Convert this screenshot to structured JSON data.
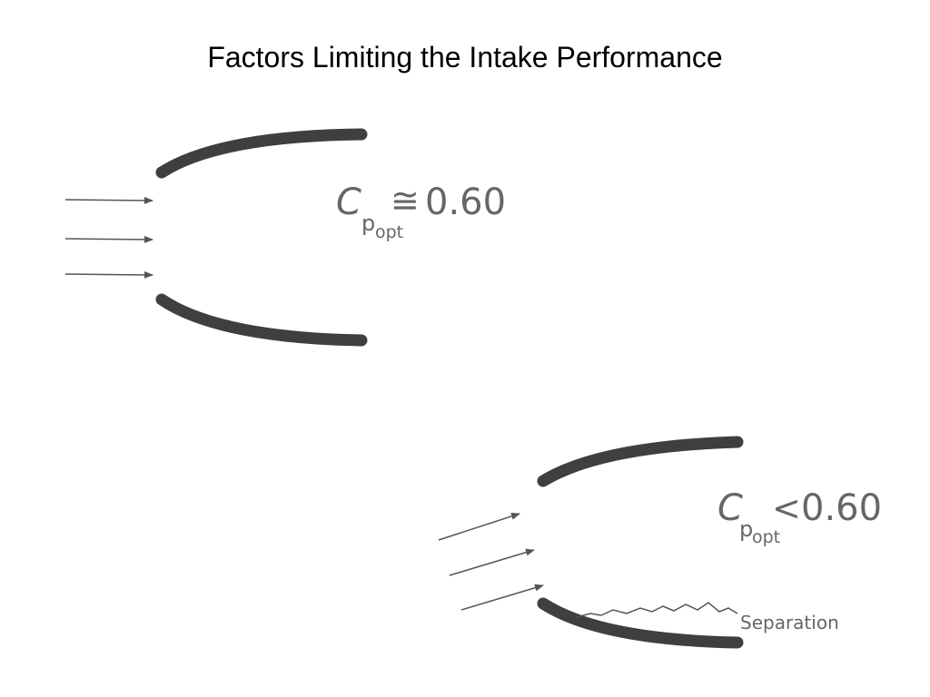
{
  "title": "Factors Limiting the Intake Performance",
  "figures": [
    {
      "symbol": "C",
      "subscript": "p",
      "subsubscript": "opt",
      "relation": "≅",
      "value": "0.60"
    },
    {
      "symbol": "C",
      "subscript": "p",
      "subsubscript": "opt",
      "relation": "<",
      "value": "0.60",
      "annotation": "Separation"
    }
  ]
}
